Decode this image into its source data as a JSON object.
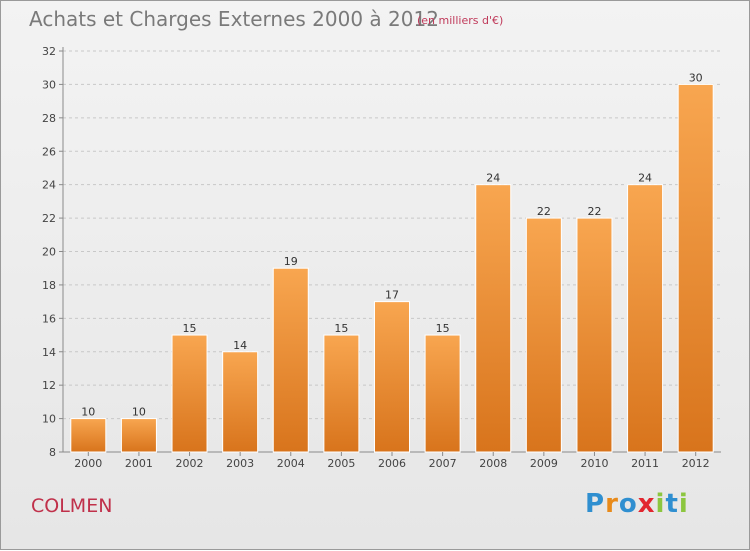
{
  "title": "Achats et Charges Externes 2000 à 2012",
  "subtitle": "(en milliers d'€)",
  "commune": "COLMEN",
  "brand": {
    "letters": [
      "P",
      "r",
      "o",
      "x",
      "i",
      "t",
      "i"
    ],
    "colors": [
      "#2f8fd0",
      "#e88a1a",
      "#2f8fd0",
      "#e2262f",
      "#8cc63f",
      "#2f8fd0",
      "#8cc63f"
    ]
  },
  "colors": {
    "bar_light": "#f8a650",
    "bar_dark": "#d8741c",
    "axis": "#8a8a8a",
    "grid": "#c8c8c8"
  },
  "chart_data": {
    "type": "bar",
    "categories": [
      "2000",
      "2001",
      "2002",
      "2003",
      "2004",
      "2005",
      "2006",
      "2007",
      "2008",
      "2009",
      "2010",
      "2011",
      "2012"
    ],
    "values": [
      10,
      10,
      15,
      14,
      19,
      15,
      17,
      15,
      24,
      22,
      22,
      24,
      30
    ],
    "title": "Achats et Charges Externes 2000 à 2012",
    "xlabel": "",
    "ylabel": "",
    "ylim": [
      8,
      32
    ],
    "yticks": [
      8,
      10,
      12,
      14,
      16,
      18,
      20,
      22,
      24,
      26,
      28,
      30,
      32
    ],
    "grid": true,
    "data_labels": true
  }
}
